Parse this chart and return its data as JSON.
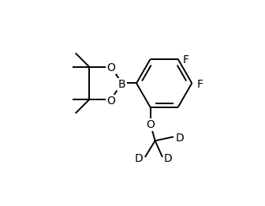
{
  "background_color": "#ffffff",
  "line_color": "#000000",
  "line_width": 1.4,
  "font_size": 10,
  "figsize": [
    3.36,
    2.61
  ],
  "dpi": 100,
  "xlim": [
    0,
    10
  ],
  "ylim": [
    0,
    7.7
  ]
}
